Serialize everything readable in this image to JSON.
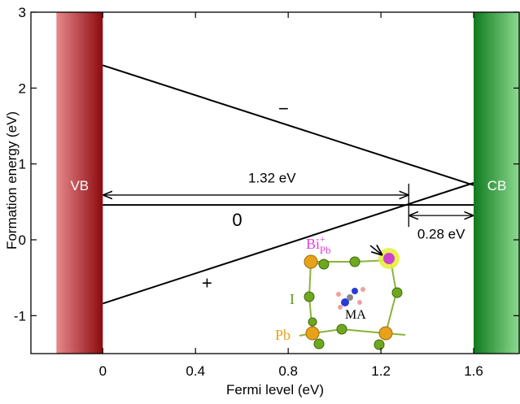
{
  "chart_data": {
    "type": "line",
    "xlabel": "Fermi level (eV)",
    "ylabel": "Formation energy (eV)",
    "xlim": [
      -0.31,
      1.8
    ],
    "ylim": [
      -1.5,
      3
    ],
    "xticks": [
      0,
      0.4,
      0.8,
      1.2,
      1.6
    ],
    "yticks": [
      -1,
      0,
      1,
      2,
      3
    ],
    "x": [
      0,
      1.6
    ],
    "series": [
      {
        "name": "−",
        "color": "#000000",
        "values": [
          2.3,
          0.72
        ],
        "label_at": [
          0.78,
          1.65
        ]
      },
      {
        "name": "0",
        "color": "#000000",
        "values": [
          0.46,
          0.46
        ],
        "label_at": [
          0.58,
          0.18
        ]
      },
      {
        "name": "+",
        "color": "#000000",
        "values": [
          -0.84,
          0.75
        ],
        "label_at": [
          0.45,
          -0.65
        ]
      }
    ],
    "bands": [
      {
        "label": "VB",
        "range": [
          -0.2,
          0
        ],
        "colors": [
          "#e8888c",
          "#8b0a0e"
        ],
        "label_y": 0.72
      },
      {
        "label": "CB",
        "range": [
          1.6,
          1.8
        ],
        "colors": [
          "#0f7a1e",
          "#8fdc92"
        ],
        "label_y": 0.72
      }
    ],
    "arrows": [
      {
        "text": "1.32 eV",
        "x": [
          0,
          1.32
        ],
        "y": 0.59,
        "text_y": 0.82
      },
      {
        "text": "0.28 eV",
        "x": [
          1.32,
          1.6
        ],
        "y": 0.32,
        "text_y": 0.08
      }
    ],
    "inset_labels": {
      "bi": "Bi",
      "charge": "+",
      "site": "Pb",
      "iodine": "I",
      "ma": "MA",
      "lead": "Pb"
    }
  }
}
